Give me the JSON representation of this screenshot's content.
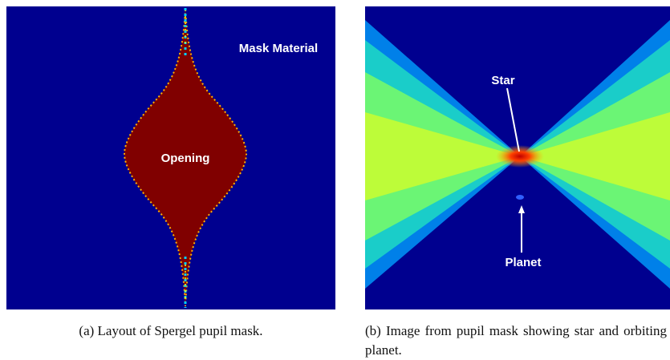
{
  "figure": {
    "panels": [
      {
        "labels": [
          "Mask Material",
          "Opening"
        ],
        "caption": "(a) Layout of Spergel pupil mask."
      },
      {
        "labels": [
          "Star",
          "Planet"
        ],
        "caption": "(b) Image from pupil mask showing star and orbiting planet."
      }
    ]
  }
}
